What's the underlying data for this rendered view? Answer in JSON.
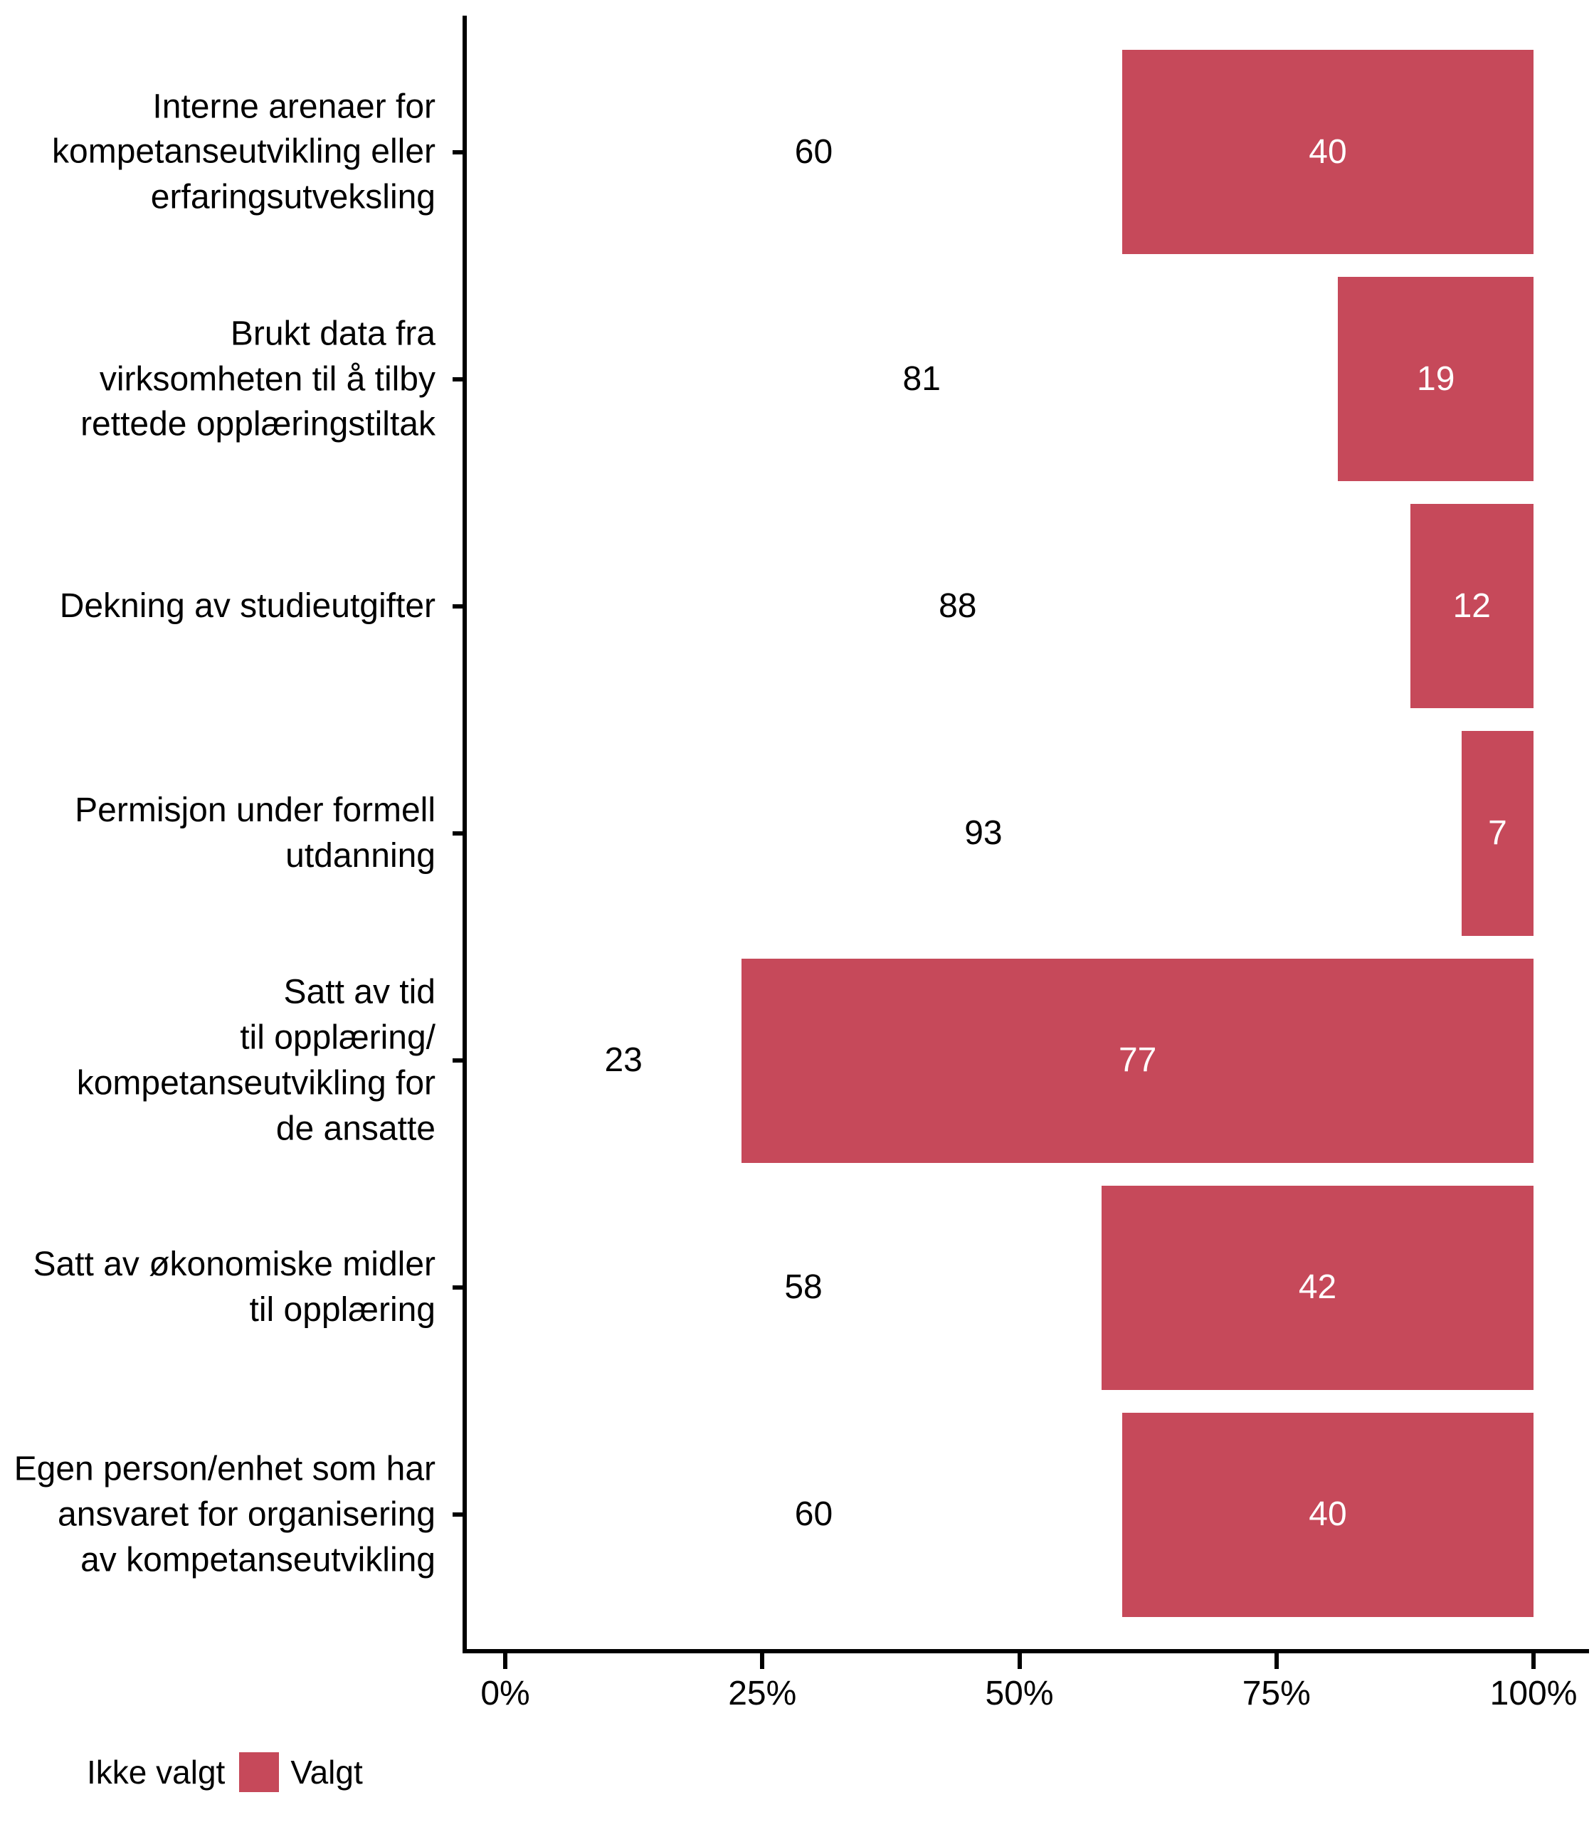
{
  "chart_data": {
    "type": "bar",
    "orientation": "horizontal",
    "stacked": true,
    "units": "percent",
    "title": "",
    "xlabel": "",
    "ylabel": "",
    "grid": false,
    "categories": [
      {
        "label": "Interne arenaer for kompetanseutvikling eller erfaringsutveksling",
        "lines": [
          "Interne arenaer for",
          "kompetanseutvikling eller",
          "erfaringsutveksling"
        ]
      },
      {
        "label": "Brukt data fra virksomheten til å tilby rettede opplæringstiltak",
        "lines": [
          "Brukt data fra",
          "virksomheten til å tilby",
          "rettede opplæringstiltak"
        ]
      },
      {
        "label": "Dekning av studieutgifter",
        "lines": [
          "Dekning av studieutgifter"
        ]
      },
      {
        "label": "Permisjon under formell utdanning",
        "lines": [
          "Permisjon under formell",
          "utdanning"
        ]
      },
      {
        "label": "Satt av tid til opplæring/ kompetanseutvikling for de ansatte",
        "lines": [
          "Satt av tid",
          "til opplæring/",
          "kompetanseutvikling for",
          "de ansatte"
        ]
      },
      {
        "label": "Satt av økonomiske midler til opplæring",
        "lines": [
          "Satt av økonomiske midler",
          "til opplæring"
        ]
      },
      {
        "label": "Egen person/enhet som har ansvaret for organisering av kompetanseutvikling",
        "lines": [
          "Egen person/enhet som har",
          "ansvaret for organisering",
          "av kompetanseutvikling"
        ]
      }
    ],
    "series": [
      {
        "name": "Ikke valgt",
        "color": "#FFFFFF",
        "label_color": "#000000",
        "values": [
          60,
          81,
          88,
          93,
          23,
          58,
          60
        ]
      },
      {
        "name": "Valgt",
        "color": "#C6495A",
        "label_color": "#FFFFFF",
        "values": [
          40,
          19,
          12,
          7,
          77,
          42,
          40
        ]
      }
    ],
    "x_axis": {
      "range": [
        0,
        100
      ],
      "tick_values": [
        0,
        25,
        50,
        75,
        100
      ],
      "tick_labels": [
        "0%",
        "25%",
        "50%",
        "75%",
        "100%"
      ]
    },
    "legend": {
      "position": "bottom-left",
      "items": [
        {
          "label": "Ikke valgt",
          "color": "#FFFFFF"
        },
        {
          "label": "Valgt",
          "color": "#C6495A"
        }
      ]
    }
  }
}
